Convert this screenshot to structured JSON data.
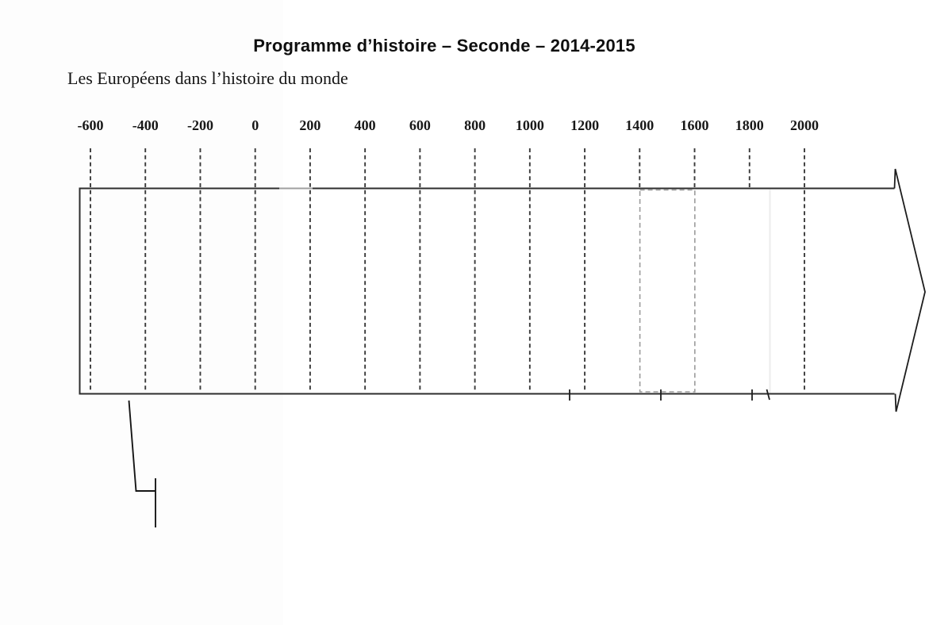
{
  "page": {
    "title": "Programme d’histoire – Seconde – 2014-2015",
    "subtitle": "Les Européens dans l’histoire du monde"
  },
  "timeline": {
    "type": "timeline-axis",
    "unit": "years",
    "axis_range": [
      -600,
      2000
    ],
    "tick_step": 200,
    "tick_years": [
      -600,
      -400,
      -200,
      0,
      200,
      400,
      600,
      800,
      1000,
      1200,
      1400,
      1600,
      1800,
      2000
    ],
    "tick_labels": [
      "-600",
      "-400",
      "-200",
      "0",
      "200",
      "400",
      "600",
      "800",
      "1000",
      "1200",
      "1400",
      "1600",
      "1800",
      "2000"
    ],
    "band": {
      "shape": "horizontal-arrow",
      "content": "empty"
    },
    "highlight_span": {
      "from_year": 1400,
      "to_year": 1600,
      "style": "light-gray dashed rectangle inside band"
    },
    "gridlines_stopping_at_band_top": [
      1400,
      1600,
      1800
    ],
    "colors": {
      "ink": "#2d2d2d",
      "gridline_dash": "#3a3a3a",
      "highlight_dash": "#9c9c9c",
      "scan_artifact": "#ececec"
    }
  }
}
